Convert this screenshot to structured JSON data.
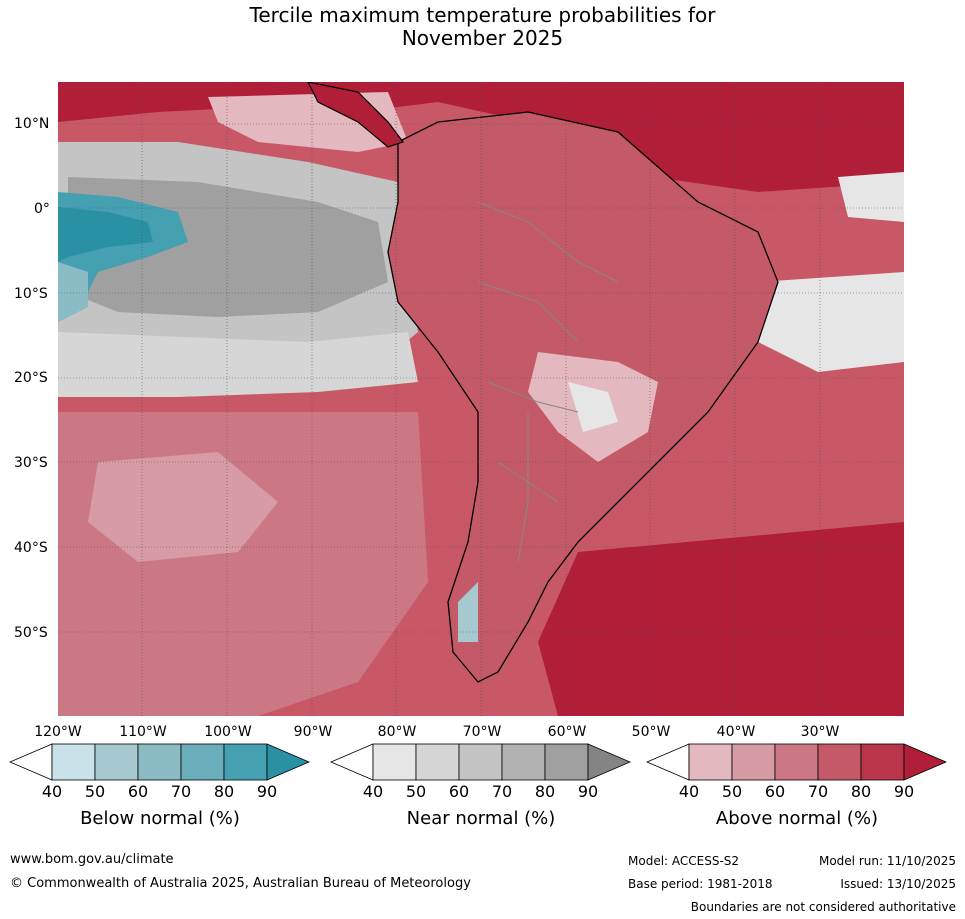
{
  "title": {
    "line1": "Tercile maximum temperature probabilities for",
    "line2": "November 2025"
  },
  "axes": {
    "lat_labels": [
      "10°N",
      "0°",
      "10°S",
      "20°S",
      "30°S",
      "40°S",
      "50°S"
    ],
    "lon_labels": [
      "120°W",
      "110°W",
      "100°W",
      "90°W",
      "80°W",
      "70°W",
      "60°W",
      "50°W",
      "40°W",
      "30°W"
    ]
  },
  "legends": [
    {
      "label": "Below normal (%)",
      "ticks": [
        "40",
        "50",
        "60",
        "70",
        "80",
        "90"
      ],
      "colors": [
        "#ffffff",
        "#c9e1e8",
        "#a6c9cf",
        "#8bbcc5",
        "#6aaebb",
        "#45a1b1",
        "#2a90a4"
      ]
    },
    {
      "label": "Near normal (%)",
      "ticks": [
        "40",
        "50",
        "60",
        "70",
        "80",
        "90"
      ],
      "colors": [
        "#ffffff",
        "#e6e6e6",
        "#d6d6d6",
        "#c4c4c4",
        "#b2b2b2",
        "#a0a0a0",
        "#848484"
      ]
    },
    {
      "label": "Above normal (%)",
      "ticks": [
        "40",
        "50",
        "60",
        "70",
        "80",
        "90"
      ],
      "colors": [
        "#ffffff",
        "#e3b8bf",
        "#d69ba4",
        "#cc7884",
        "#c45a67",
        "#b8354a",
        "#b01e38"
      ]
    }
  ],
  "footer": {
    "website": "www.bom.gov.au/climate",
    "copyright": "© Commonwealth of Australia 2025, Australian Bureau of Meteorology",
    "model": "Model: ACCESS-S2",
    "model_run": "Model run: 11/10/2025",
    "base_period": "Base period: 1981-2018",
    "issued": "Issued: 13/10/2025",
    "disclaimer": "Boundaries are not considered authoritative"
  }
}
